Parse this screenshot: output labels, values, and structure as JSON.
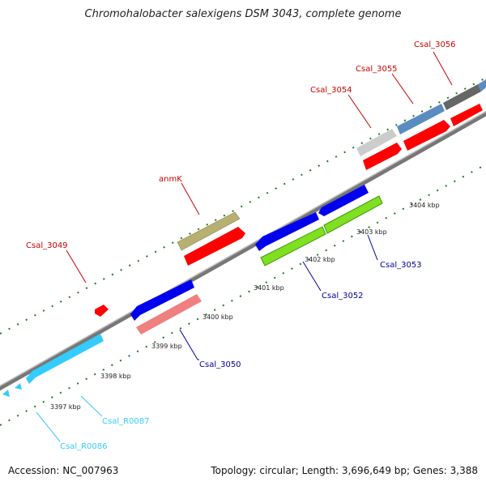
{
  "title": "Chromohalobacter salexigens DSM 3043, complete genome",
  "accession": "Accession: NC_007963",
  "summary": "Topology: circular; Length: 3,696,649 bp; Genes: 3,388",
  "colors": {
    "red": "#ff0000",
    "blue": "#0000ee",
    "dark_red_label": "#cc0000",
    "navy_label": "#00009a",
    "cyan": "#33ccff",
    "olive": "#b8b070",
    "steel": "#5b8cc0",
    "dark_gray": "#666666",
    "light_gray": "#cccccc",
    "pink": "#f08080",
    "green": "#80e020",
    "tick_green": "#1e7a1e",
    "backbone": "#888888"
  },
  "ticks": [
    {
      "label": "3397 kbp"
    },
    {
      "label": "3398 kbp"
    },
    {
      "label": "3399 kbp"
    },
    {
      "label": "3400 kbp"
    },
    {
      "label": "3401 kbp"
    },
    {
      "label": "3402 kbp"
    },
    {
      "label": "3403 kbp"
    },
    {
      "label": "3404 kbp"
    }
  ],
  "genes": [
    {
      "name": "Csal_3049",
      "color": "red"
    },
    {
      "name": "anmK",
      "color": "olive"
    },
    {
      "name": "Csal_3054",
      "color": "light_gray"
    },
    {
      "name": "Csal_3055",
      "color": "steel"
    },
    {
      "name": "Csal_3056",
      "color": "dark_gray"
    },
    {
      "name": "Csal_3050",
      "color": "pink"
    },
    {
      "name": "Csal_3052",
      "color": "green"
    },
    {
      "name": "Csal_3053",
      "color": "green"
    },
    {
      "name": "Csal_R0087",
      "color": "cyan"
    },
    {
      "name": "Csal_R0086",
      "color": "cyan"
    }
  ]
}
